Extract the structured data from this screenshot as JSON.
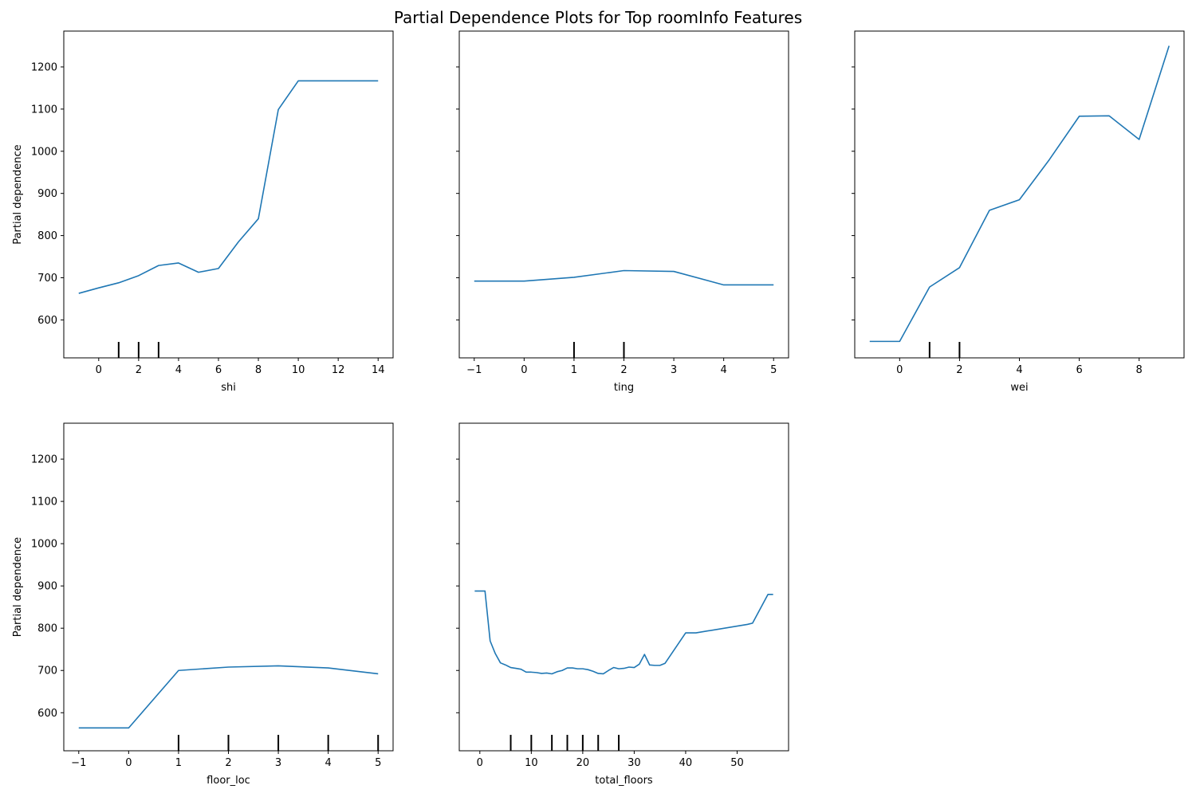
{
  "figure": {
    "title": "Partial Dependence Plots for Top roomInfo Features",
    "line_color": "#1f77b4"
  },
  "chart_data": [
    {
      "type": "line",
      "xlabel": "shi",
      "ylabel": "Partial dependence",
      "xlim": [
        -1.75,
        14.75
      ],
      "ylim": [
        510,
        1285
      ],
      "xticks": [
        0,
        2,
        4,
        6,
        8,
        10,
        12,
        14
      ],
      "yticks": [
        600,
        700,
        800,
        900,
        1000,
        1100,
        1200
      ],
      "show_yticklabels": true,
      "series": [
        {
          "x": [
            -1,
            0,
            1,
            2,
            3,
            4,
            5,
            6,
            7,
            8,
            9,
            10,
            11,
            12,
            13,
            14
          ],
          "y": [
            663,
            676,
            688,
            705,
            729,
            735,
            713,
            722,
            785,
            840,
            1099,
            1167,
            1167,
            1167,
            1167,
            1167
          ]
        }
      ],
      "rug": [
        1,
        2,
        3
      ]
    },
    {
      "type": "line",
      "xlabel": "ting",
      "ylabel": "",
      "xlim": [
        -1.3,
        5.3
      ],
      "ylim": [
        510,
        1285
      ],
      "xticks": [
        -1,
        0,
        1,
        2,
        3,
        4,
        5
      ],
      "yticks": [
        600,
        700,
        800,
        900,
        1000,
        1100,
        1200
      ],
      "show_yticklabels": false,
      "series": [
        {
          "x": [
            -1,
            0,
            1,
            2,
            3,
            4,
            5
          ],
          "y": [
            692,
            692,
            701,
            717,
            715,
            683,
            683
          ]
        }
      ],
      "rug": [
        1,
        2
      ]
    },
    {
      "type": "line",
      "xlabel": "wei",
      "ylabel": "",
      "xlim": [
        -1.5,
        9.5
      ],
      "ylim": [
        510,
        1285
      ],
      "xticks": [
        0,
        2,
        4,
        6,
        8
      ],
      "yticks": [
        600,
        700,
        800,
        900,
        1000,
        1100,
        1200
      ],
      "show_yticklabels": false,
      "series": [
        {
          "x": [
            -1,
            0,
            1,
            2,
            3,
            4,
            5,
            6,
            7,
            8,
            9
          ],
          "y": [
            549,
            549,
            678,
            724,
            860,
            885,
            980,
            1083,
            1084,
            1028,
            1250
          ]
        }
      ],
      "rug": [
        1,
        2
      ]
    },
    {
      "type": "line",
      "xlabel": "floor_loc",
      "ylabel": "Partial dependence",
      "xlim": [
        -1.3,
        5.3
      ],
      "ylim": [
        510,
        1285
      ],
      "xticks": [
        -1,
        0,
        1,
        2,
        3,
        4,
        5
      ],
      "yticks": [
        600,
        700,
        800,
        900,
        1000,
        1100,
        1200
      ],
      "show_yticklabels": true,
      "series": [
        {
          "x": [
            -1,
            0,
            1,
            2,
            3,
            4,
            5
          ],
          "y": [
            564,
            564,
            700,
            708,
            711,
            706,
            692
          ]
        }
      ],
      "rug": [
        1,
        2,
        3,
        4,
        5
      ]
    },
    {
      "type": "line",
      "xlabel": "total_floors",
      "ylabel": "",
      "xlim": [
        -4,
        60
      ],
      "ylim": [
        510,
        1285
      ],
      "xticks": [
        0,
        10,
        20,
        30,
        40,
        50
      ],
      "yticks": [
        600,
        700,
        800,
        900,
        1000,
        1100,
        1200
      ],
      "show_yticklabels": false,
      "series": [
        {
          "x": [
            -1,
            1,
            2,
            3,
            4,
            5,
            6,
            7,
            8,
            9,
            10,
            11,
            12,
            13,
            14,
            15,
            16,
            17,
            18,
            19,
            20,
            21,
            22,
            23,
            24,
            25,
            26,
            27,
            28,
            29,
            30,
            31,
            32,
            33,
            34,
            35,
            36,
            40,
            42,
            52,
            53,
            56,
            57
          ],
          "y": [
            888,
            888,
            770,
            740,
            718,
            713,
            707,
            705,
            703,
            696,
            696,
            695,
            693,
            694,
            692,
            697,
            700,
            706,
            706,
            704,
            704,
            702,
            698,
            693,
            692,
            700,
            707,
            704,
            705,
            708,
            707,
            715,
            738,
            713,
            712,
            712,
            717,
            789,
            789,
            809,
            812,
            880,
            880
          ]
        }
      ],
      "rug": [
        6,
        10,
        14,
        17,
        20,
        23,
        27
      ]
    }
  ]
}
